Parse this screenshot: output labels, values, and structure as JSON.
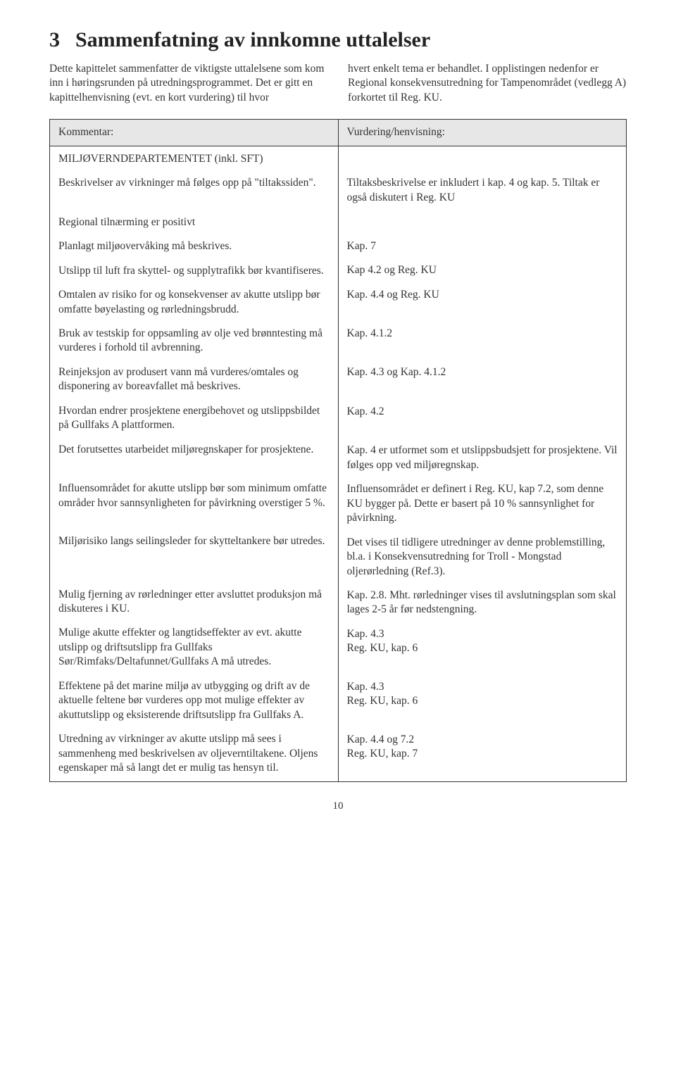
{
  "chapter": {
    "number": "3",
    "title": "Sammenfatning av innkomne uttalelser"
  },
  "intro": {
    "left": "Dette kapittelet sammenfatter de viktigste uttalelsene som kom inn i høringsrunden på utredningsprogrammet. Det er gitt en kapittelhenvisning (evt. en kort vurdering) til hvor",
    "right": "hvert enkelt tema er behandlet. I opplistingen nedenfor er Regional konsekvensutredning for Tampenområdet (vedlegg A) forkortet til Reg. KU."
  },
  "table": {
    "headers": {
      "left": "Kommentar:",
      "right": "Vurdering/henvisning:"
    },
    "left_paras": [
      "MILJØVERNDEPARTEMENTET (inkl. SFT)",
      "Beskrivelser av virkninger må følges opp på \"tiltakssiden\".",
      "Regional tilnærming er positivt",
      "Planlagt miljøovervåking må beskrives.",
      "Utslipp til luft fra skyttel- og supplytrafikk bør kvantifiseres.",
      "Omtalen av risiko for og konsekvenser av akutte utslipp bør omfatte bøyelasting og rørledningsbrudd.",
      "Bruk av testskip for oppsamling av olje ved brønntesting må vurderes i forhold til avbrenning.",
      "Reinjeksjon av produsert vann må vurderes/omtales og disponering av boreavfallet må beskrives.",
      "Hvordan endrer prosjektene energibehovet og utslippsbildet på Gullfaks A plattformen.",
      "Det forutsettes utarbeidet miljøregnskaper for prosjektene.",
      "Influensområdet for akutte utslipp bør som minimum omfatte områder hvor sannsynligheten for påvirkning overstiger 5 %.",
      "Miljørisiko langs seilingsleder for skytteltankere bør utredes.",
      "Mulig fjerning av rørledninger etter avsluttet produksjon må diskuteres i KU.",
      "Mulige akutte effekter og langtidseffekter av evt. akutte utslipp og driftsutslipp fra Gullfaks Sør/Rimfaks/Deltafunnet/Gullfaks A må utredes.",
      "Effektene på det marine miljø av utbygging og drift av de aktuelle feltene bør vurderes opp mot mulige effekter av akuttutslipp og eksisterende driftsutslipp fra Gullfaks A.",
      "Utredning av virkninger av akutte utslipp må sees i sammenheng med beskrivelsen av oljeverntiltakene. Oljens egenskaper må så langt det er mulig tas hensyn til."
    ],
    "right_paras": [
      "",
      "Tiltaksbeskrivelse er inkludert i kap. 4 og kap. 5. Tiltak er også diskutert i Reg. KU",
      "",
      "Kap. 7",
      "Kap 4.2 og Reg. KU",
      "Kap. 4.4 og Reg. KU",
      "Kap. 4.1.2",
      "Kap. 4.3 og Kap. 4.1.2",
      "Kap. 4.2",
      "Kap. 4 er utformet som et utslippsbudsjett for prosjektene. Vil følges opp ved miljøregnskap.",
      "Influensområdet er definert i Reg. KU, kap 7.2, som denne KU bygger på. Dette er basert på 10 % sannsynlighet for påvirkning.",
      "Det vises til tidligere utredninger av denne problemstilling, bl.a. i Konsekvensutredning for Troll - Mongstad oljerørledning (Ref.3).",
      "Kap. 2.8. Mht. rørledninger vises til avslutningsplan som skal lages 2-5 år før nedstengning.",
      "Kap. 4.3\nReg. KU, kap. 6",
      "Kap. 4.3\nReg. KU, kap. 6",
      "Kap. 4.4 og 7.2\nReg. KU, kap. 7"
    ]
  },
  "page_number": "10",
  "colors": {
    "text": "#333333",
    "header_bg": "#e7e7e7",
    "border": "#333333",
    "background": "#ffffff"
  }
}
